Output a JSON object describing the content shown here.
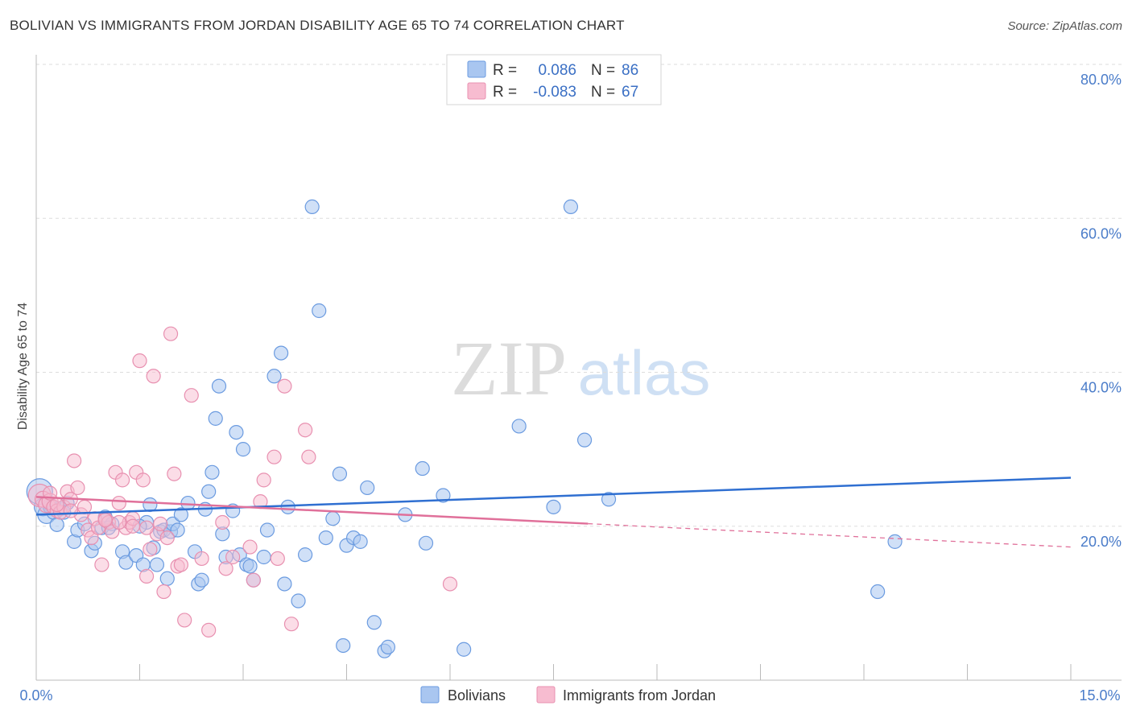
{
  "header": {
    "title": "BOLIVIAN VS IMMIGRANTS FROM JORDAN DISABILITY AGE 65 TO 74 CORRELATION CHART",
    "source": "Source: ZipAtlas.com"
  },
  "watermark": {
    "zip": "ZIP",
    "atlas": "atlas"
  },
  "legend": {
    "r_label": "R =",
    "n_label": "N =",
    "series1": {
      "r": "0.086",
      "n": "86"
    },
    "series2": {
      "r": "-0.083",
      "n": "67"
    }
  },
  "colors": {
    "blue_fill": "#a9c6f0",
    "blue_stroke": "#6b9be0",
    "blue_line": "#2f6fd1",
    "pink_fill": "#f7bcd0",
    "pink_stroke": "#e890b0",
    "pink_line": "#e0709a"
  },
  "chart_data": {
    "type": "scatter",
    "title": "BOLIVIAN VS IMMIGRANTS FROM JORDAN DISABILITY AGE 65 TO 74 CORRELATION CHART",
    "xlabel": "",
    "ylabel": "Disability Age 65 to 74",
    "xlim": [
      0,
      15
    ],
    "ylim": [
      0,
      80
    ],
    "x_tick_labels": [
      "0.0%",
      "15.0%"
    ],
    "y_ticks": [
      20,
      40,
      60,
      80
    ],
    "y_tick_labels": [
      "20.0%",
      "40.0%",
      "60.0%",
      "80.0%"
    ],
    "legend_position": "bottom",
    "series": [
      {
        "name": "Bolivians",
        "r": 0.086,
        "n": 86,
        "trend": {
          "x": [
            0,
            15
          ],
          "y": [
            21.5,
            26.3
          ],
          "dashed_from": null
        },
        "points": [
          [
            0.05,
            24.5
          ],
          [
            0.1,
            22.5
          ],
          [
            0.15,
            21.5
          ],
          [
            0.2,
            22.8
          ],
          [
            0.25,
            21.8
          ],
          [
            0.3,
            20.2
          ],
          [
            0.35,
            22.3
          ],
          [
            0.45,
            23
          ],
          [
            0.55,
            18
          ],
          [
            0.6,
            19.5
          ],
          [
            0.7,
            20.3
          ],
          [
            0.8,
            16.8
          ],
          [
            0.85,
            17.8
          ],
          [
            0.95,
            19.8
          ],
          [
            1.0,
            21.2
          ],
          [
            1.1,
            20.3
          ],
          [
            1.25,
            16.7
          ],
          [
            1.3,
            15.3
          ],
          [
            1.45,
            16.2
          ],
          [
            1.55,
            15
          ],
          [
            1.6,
            20.5
          ],
          [
            1.65,
            22.8
          ],
          [
            1.7,
            17.2
          ],
          [
            1.75,
            15
          ],
          [
            1.8,
            19.3
          ],
          [
            1.85,
            19.5
          ],
          [
            1.9,
            13.2
          ],
          [
            1.95,
            19.3
          ],
          [
            1.98,
            20.3
          ],
          [
            2.05,
            19.5
          ],
          [
            2.1,
            21.5
          ],
          [
            2.2,
            23
          ],
          [
            2.3,
            16.7
          ],
          [
            2.35,
            12.5
          ],
          [
            2.4,
            13
          ],
          [
            2.5,
            24.5
          ],
          [
            2.55,
            27
          ],
          [
            2.6,
            34
          ],
          [
            2.65,
            38.2
          ],
          [
            2.7,
            19
          ],
          [
            2.75,
            16
          ],
          [
            2.85,
            22
          ],
          [
            2.9,
            32.2
          ],
          [
            2.95,
            16.3
          ],
          [
            3.0,
            30
          ],
          [
            3.05,
            15
          ],
          [
            3.1,
            14.8
          ],
          [
            3.15,
            13
          ],
          [
            3.3,
            16
          ],
          [
            3.35,
            19.5
          ],
          [
            3.45,
            39.5
          ],
          [
            3.55,
            42.5
          ],
          [
            3.6,
            12.5
          ],
          [
            3.65,
            22.5
          ],
          [
            3.8,
            10.3
          ],
          [
            3.9,
            16.3
          ],
          [
            4.0,
            61.5
          ],
          [
            4.1,
            48
          ],
          [
            4.2,
            18.5
          ],
          [
            4.3,
            21
          ],
          [
            4.4,
            26.8
          ],
          [
            4.45,
            4.5
          ],
          [
            4.5,
            17.5
          ],
          [
            4.6,
            18.5
          ],
          [
            4.7,
            18
          ],
          [
            4.8,
            25
          ],
          [
            4.9,
            7.5
          ],
          [
            5.05,
            3.8
          ],
          [
            5.1,
            4.3
          ],
          [
            5.35,
            21.5
          ],
          [
            5.6,
            27.5
          ],
          [
            5.65,
            17.8
          ],
          [
            5.9,
            24
          ],
          [
            6.2,
            4
          ],
          [
            7.0,
            33
          ],
          [
            7.5,
            22.5
          ],
          [
            7.75,
            61.5
          ],
          [
            7.95,
            31.2
          ],
          [
            8.3,
            23.5
          ],
          [
            12.2,
            11.5
          ],
          [
            12.45,
            18
          ],
          [
            0.2,
            22.5
          ],
          [
            0.4,
            21.8
          ],
          [
            1.05,
            19.8
          ],
          [
            1.5,
            20
          ],
          [
            2.45,
            22.2
          ]
        ]
      },
      {
        "name": "Immigrants from Jordan",
        "r": -0.083,
        "n": 67,
        "trend": {
          "x": [
            0,
            15
          ],
          "y": [
            23.8,
            17.3
          ],
          "dashed_from": 8
        },
        "points": [
          [
            0.05,
            24
          ],
          [
            0.1,
            23.5
          ],
          [
            0.15,
            22.8
          ],
          [
            0.2,
            23.2
          ],
          [
            0.25,
            22.5
          ],
          [
            0.3,
            22
          ],
          [
            0.35,
            21.8
          ],
          [
            0.4,
            22.5
          ],
          [
            0.45,
            24.5
          ],
          [
            0.5,
            23.5
          ],
          [
            0.55,
            28.5
          ],
          [
            0.6,
            25
          ],
          [
            0.65,
            21.5
          ],
          [
            0.7,
            22.5
          ],
          [
            0.75,
            19.5
          ],
          [
            0.8,
            18.5
          ],
          [
            0.85,
            21
          ],
          [
            0.9,
            19.8
          ],
          [
            0.95,
            15
          ],
          [
            1.0,
            21
          ],
          [
            1.05,
            20.5
          ],
          [
            1.1,
            19.3
          ],
          [
            1.15,
            27
          ],
          [
            1.2,
            23
          ],
          [
            1.25,
            26
          ],
          [
            1.3,
            19.8
          ],
          [
            1.35,
            20.5
          ],
          [
            1.4,
            21
          ],
          [
            1.45,
            27
          ],
          [
            1.5,
            41.5
          ],
          [
            1.55,
            26
          ],
          [
            1.6,
            13.5
          ],
          [
            1.65,
            17
          ],
          [
            1.7,
            39.5
          ],
          [
            1.75,
            19
          ],
          [
            1.8,
            20.3
          ],
          [
            1.85,
            11.5
          ],
          [
            1.9,
            18.5
          ],
          [
            1.95,
            45
          ],
          [
            2.0,
            26.8
          ],
          [
            2.05,
            14.8
          ],
          [
            2.1,
            15
          ],
          [
            2.15,
            7.8
          ],
          [
            2.25,
            37
          ],
          [
            2.4,
            15.8
          ],
          [
            2.5,
            6.5
          ],
          [
            2.7,
            20.5
          ],
          [
            2.75,
            14.5
          ],
          [
            2.85,
            16
          ],
          [
            3.1,
            17.3
          ],
          [
            3.15,
            13
          ],
          [
            3.25,
            23.2
          ],
          [
            3.3,
            26
          ],
          [
            3.45,
            29
          ],
          [
            3.5,
            15.8
          ],
          [
            3.6,
            38.2
          ],
          [
            3.7,
            7.3
          ],
          [
            3.9,
            32.5
          ],
          [
            3.95,
            29
          ],
          [
            6.0,
            12.5
          ],
          [
            0.3,
            22.8
          ],
          [
            0.5,
            22
          ],
          [
            1.0,
            20.8
          ],
          [
            1.2,
            20.5
          ],
          [
            1.4,
            20
          ],
          [
            1.6,
            19.8
          ],
          [
            0.2,
            24.3
          ]
        ]
      }
    ]
  }
}
